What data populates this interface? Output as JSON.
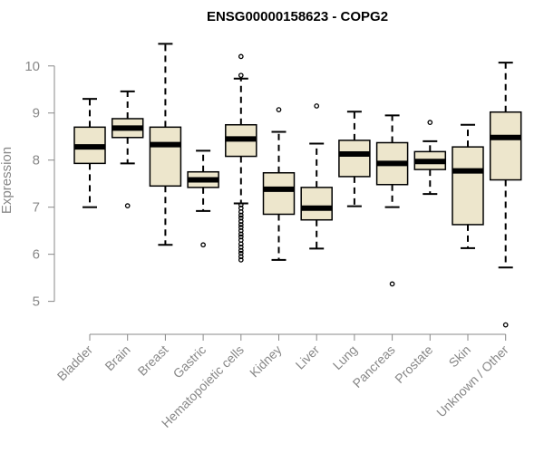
{
  "chart_data": {
    "type": "boxplot",
    "title": "ENSG00000158623 - COPG2",
    "ylabel": "Expression",
    "xlabel": "",
    "ylim": [
      4.3,
      10.65
    ],
    "yticks": [
      5,
      6,
      7,
      8,
      9,
      10
    ],
    "box_fill": "#ede6cc",
    "axis_color": "#888888",
    "categories": [
      "Bladder",
      "Brain",
      "Breast",
      "Gastric",
      "Hematopoietic cells",
      "Kidney",
      "Liver",
      "Lung",
      "Pancreas",
      "Prostate",
      "Skin",
      "Unknown / Other"
    ],
    "boxes": [
      {
        "name": "Bladder",
        "whisker_low": 7.0,
        "q1": 7.93,
        "median": 8.28,
        "q3": 8.7,
        "whisker_high": 9.3,
        "outliers": []
      },
      {
        "name": "Brain",
        "whisker_low": 7.93,
        "q1": 8.48,
        "median": 8.68,
        "q3": 8.88,
        "whisker_high": 9.46,
        "outliers": [
          7.03
        ]
      },
      {
        "name": "Breast",
        "whisker_low": 6.2,
        "q1": 7.45,
        "median": 8.33,
        "q3": 8.7,
        "whisker_high": 10.47,
        "outliers": []
      },
      {
        "name": "Gastric",
        "whisker_low": 6.92,
        "q1": 7.42,
        "median": 7.58,
        "q3": 7.75,
        "whisker_high": 8.2,
        "outliers": [
          6.2
        ]
      },
      {
        "name": "Hematopoietic cells",
        "whisker_low": 7.08,
        "q1": 8.08,
        "median": 8.45,
        "q3": 8.75,
        "whisker_high": 9.73,
        "outliers": [
          10.2,
          9.8,
          7.05,
          6.98,
          6.9,
          6.83,
          6.77,
          6.7,
          6.63,
          6.57,
          6.5,
          6.43,
          6.37,
          6.3,
          6.22,
          6.15,
          6.08,
          6.02,
          5.95,
          5.88
        ]
      },
      {
        "name": "Kidney",
        "whisker_low": 5.88,
        "q1": 6.85,
        "median": 7.38,
        "q3": 7.73,
        "whisker_high": 8.6,
        "outliers": [
          9.07
        ]
      },
      {
        "name": "Liver",
        "whisker_low": 6.12,
        "q1": 6.73,
        "median": 6.98,
        "q3": 7.42,
        "whisker_high": 8.35,
        "outliers": [
          9.15
        ]
      },
      {
        "name": "Lung",
        "whisker_low": 7.02,
        "q1": 7.65,
        "median": 8.13,
        "q3": 8.42,
        "whisker_high": 9.03,
        "outliers": []
      },
      {
        "name": "Pancreas",
        "whisker_low": 7.0,
        "q1": 7.48,
        "median": 7.93,
        "q3": 8.37,
        "whisker_high": 8.95,
        "outliers": [
          5.37
        ]
      },
      {
        "name": "Prostate",
        "whisker_low": 7.28,
        "q1": 7.8,
        "median": 7.97,
        "q3": 8.18,
        "whisker_high": 8.4,
        "outliers": [
          8.8
        ]
      },
      {
        "name": "Skin",
        "whisker_low": 6.13,
        "q1": 6.63,
        "median": 7.77,
        "q3": 8.28,
        "whisker_high": 8.75,
        "outliers": []
      },
      {
        "name": "Unknown / Other",
        "whisker_low": 5.72,
        "q1": 7.58,
        "median": 8.48,
        "q3": 9.02,
        "whisker_high": 10.07,
        "outliers": [
          4.5
        ]
      }
    ]
  }
}
